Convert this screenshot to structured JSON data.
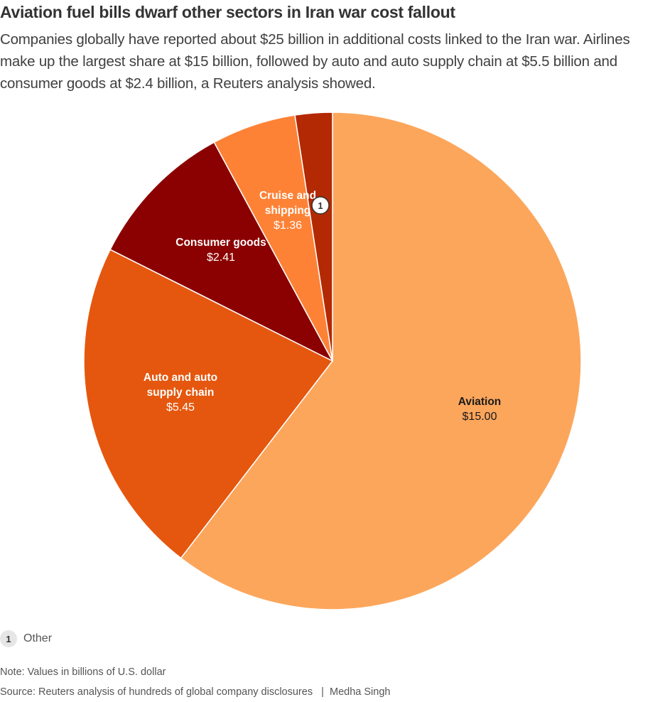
{
  "header": {
    "title": "Aviation fuel bills dwarf other sectors in Iran war cost fallout",
    "subtitle": "Companies globally have reported about $25 billion in additional costs linked to the Iran war. Airlines make up the largest share at $15 billion, followed by auto and auto supply chain at $5.5 billion and consumer goods at $2.4 billion, a Reuters analysis showed."
  },
  "chart_data": {
    "type": "pie",
    "title": "Aviation fuel bills dwarf other sectors in Iran war cost fallout",
    "unit": "billions of U.S. dollar",
    "start_angle": "12 o'clock",
    "direction": "clockwise",
    "slices": [
      {
        "label": "Aviation",
        "label_lines": [
          "Aviation"
        ],
        "value": 15.0,
        "value_label": "$15.00",
        "color": "#fca65c",
        "label_color": "#1a1a1a"
      },
      {
        "label": "Auto and auto supply chain",
        "label_lines": [
          "Auto and auto",
          "supply chain"
        ],
        "value": 5.45,
        "value_label": "$5.45",
        "color": "#e5570e",
        "label_color": "#ffffff"
      },
      {
        "label": "Consumer goods",
        "label_lines": [
          "Consumer goods"
        ],
        "value": 2.41,
        "value_label": "$2.41",
        "color": "#8b0000",
        "label_color": "#ffffff"
      },
      {
        "label": "Cruise and shipping",
        "label_lines": [
          "Cruise and",
          "shipping"
        ],
        "value": 1.36,
        "value_label": "$1.36",
        "color": "#fd8236",
        "label_color": "#ffffff"
      },
      {
        "label": "Other",
        "label_lines": [],
        "value": 0.6,
        "value_label": "",
        "color": "#b32904",
        "label_color": "#ffffff",
        "badge": "1"
      }
    ],
    "legend": [
      {
        "badge": "1",
        "label": "Other"
      }
    ]
  },
  "footer": {
    "note": "Note: Values in billions of U.S. dollar",
    "source": "Source: Reuters analysis of hundreds of global company disclosures",
    "byline": "Medha Singh"
  }
}
